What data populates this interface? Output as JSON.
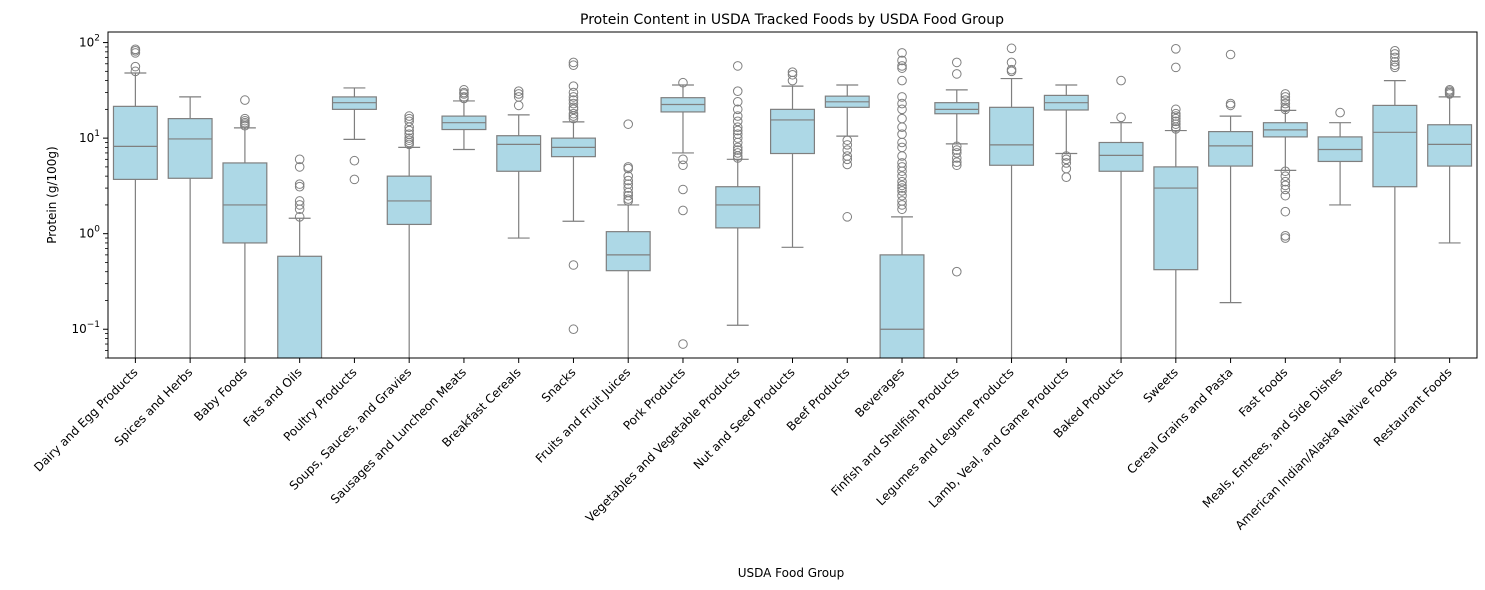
{
  "chart_data": {
    "type": "box",
    "title": "Protein Content in USDA Tracked Foods by USDA Food Group",
    "xlabel": "USDA Food Group",
    "ylabel": "Protein (g/100g)",
    "yscale": "log",
    "ylim": [
      0.05,
      129
    ],
    "yticks": [
      {
        "value": 0.1,
        "base": "10",
        "exp": "−1"
      },
      {
        "value": 1,
        "base": "10",
        "exp": "0"
      },
      {
        "value": 10,
        "base": "10",
        "exp": "1"
      },
      {
        "value": 100,
        "base": "10",
        "exp": "2"
      }
    ],
    "grid": false,
    "legend": "none",
    "colors": {
      "box_fill": "#add8e6",
      "box_edge": "#7f7f7f",
      "axis": "#000000"
    },
    "categories": [
      "Dairy and Egg Products",
      "Spices and Herbs",
      "Baby Foods",
      "Fats and Oils",
      "Poultry Products",
      "Soups, Sauces, and Gravies",
      "Sausages and Luncheon Meats",
      "Breakfast Cereals",
      "Snacks",
      "Fruits and Fruit Juices",
      "Pork Products",
      "Vegetables and Vegetable Products",
      "Nut and Seed Products",
      "Beef Products",
      "Beverages",
      "Finfish and Shellfish Products",
      "Legumes and Legume Products",
      "Lamb, Veal, and Game Products",
      "Baked Products",
      "Sweets",
      "Cereal Grains and Pasta",
      "Fast Foods",
      "Meals, Entrees, and Side Dishes",
      "American Indian/Alaska Native Foods",
      "Restaurant Foods"
    ],
    "boxes": [
      {
        "whislo": 0,
        "q1": 3.7,
        "med": 8.2,
        "q3": 21.5,
        "whishi": 48,
        "fliers": [
          85,
          82,
          78,
          56,
          50
        ]
      },
      {
        "whislo": 0,
        "q1": 3.8,
        "med": 9.8,
        "q3": 16,
        "whishi": 27,
        "fliers": []
      },
      {
        "whislo": 0,
        "q1": 0.8,
        "med": 2.0,
        "q3": 5.5,
        "whishi": 12.8,
        "fliers": [
          25,
          16,
          15.2,
          14.5,
          14,
          13.5
        ]
      },
      {
        "whislo": 0,
        "q1": 0,
        "med": 0.01,
        "q3": 0.58,
        "whishi": 1.45,
        "fliers": [
          6,
          5,
          3.3,
          3.1,
          2.2,
          2.0,
          1.8,
          1.5
        ]
      },
      {
        "whislo": 9.7,
        "q1": 20,
        "med": 23.5,
        "q3": 27,
        "whishi": 33.5,
        "fliers": [
          5.8,
          3.7
        ]
      },
      {
        "whislo": 0,
        "q1": 1.25,
        "med": 2.2,
        "q3": 4.0,
        "whishi": 8.0,
        "fliers": [
          17,
          16,
          15,
          13,
          12,
          11,
          10,
          9.5,
          9,
          8.6
        ]
      },
      {
        "whislo": 7.6,
        "q1": 12.3,
        "med": 14.5,
        "q3": 17,
        "whishi": 24.5,
        "fliers": [
          32,
          30,
          29,
          27,
          26
        ]
      },
      {
        "whislo": 0.9,
        "q1": 4.5,
        "med": 8.6,
        "q3": 10.6,
        "whishi": 17.5,
        "fliers": [
          31,
          29,
          27,
          22
        ]
      },
      {
        "whislo": 1.35,
        "q1": 6.4,
        "med": 8.0,
        "q3": 10,
        "whishi": 14.8,
        "fliers": [
          62,
          58,
          35,
          30,
          27,
          25,
          23,
          21,
          20,
          18,
          17,
          16,
          0.47,
          0.1
        ]
      },
      {
        "whislo": 0,
        "q1": 0.41,
        "med": 0.6,
        "q3": 1.05,
        "whishi": 2.0,
        "fliers": [
          14,
          5,
          4.8,
          4,
          3.6,
          3.3,
          3,
          2.7,
          2.5,
          2.3,
          2.2
        ]
      },
      {
        "whislo": 7,
        "q1": 18.8,
        "med": 22.5,
        "q3": 26.5,
        "whishi": 36,
        "fliers": [
          38,
          6,
          5.2,
          2.9,
          1.75,
          0.07
        ]
      },
      {
        "whislo": 0.11,
        "q1": 1.15,
        "med": 2.0,
        "q3": 3.1,
        "whishi": 6,
        "fliers": [
          57,
          31,
          24,
          20,
          17,
          15,
          13,
          12,
          11,
          10,
          9,
          8,
          7.5,
          7,
          6.5,
          6.2
        ]
      },
      {
        "whislo": 0.72,
        "q1": 6.9,
        "med": 15.5,
        "q3": 20,
        "whishi": 35,
        "fliers": [
          49,
          46,
          40
        ]
      },
      {
        "whislo": 10.5,
        "q1": 21,
        "med": 24,
        "q3": 27.5,
        "whishi": 36,
        "fliers": [
          9.5,
          8.5,
          7.5,
          6.5,
          6,
          5.3,
          1.5
        ]
      },
      {
        "whislo": 0,
        "q1": 0,
        "med": 0.1,
        "q3": 0.6,
        "whishi": 1.5,
        "fliers": [
          78,
          65,
          57,
          54,
          40,
          27,
          23,
          20,
          16,
          13,
          11,
          9,
          8,
          6.5,
          5.5,
          5,
          4.5,
          4,
          3.5,
          3.2,
          3,
          2.8,
          2.5,
          2.2,
          2,
          1.8
        ]
      },
      {
        "whislo": 8.7,
        "q1": 18,
        "med": 20,
        "q3": 23.5,
        "whishi": 32,
        "fliers": [
          62,
          47,
          8.2,
          7.5,
          7,
          6.2,
          5.6,
          5.2,
          0.4
        ]
      },
      {
        "whislo": 0,
        "q1": 5.2,
        "med": 8.5,
        "q3": 21,
        "whishi": 42,
        "fliers": [
          87,
          62,
          52,
          50
        ]
      },
      {
        "whislo": 6.9,
        "q1": 19.7,
        "med": 23.5,
        "q3": 28,
        "whishi": 36,
        "fliers": [
          6.5,
          6,
          5.5,
          4.8,
          3.9
        ]
      },
      {
        "whislo": 0,
        "q1": 4.5,
        "med": 6.6,
        "q3": 9,
        "whishi": 14.5,
        "fliers": [
          40,
          16.5
        ]
      },
      {
        "whislo": 0,
        "q1": 0.42,
        "med": 3.0,
        "q3": 5,
        "whishi": 12,
        "fliers": [
          86,
          55,
          20,
          18,
          17,
          16,
          15,
          14,
          13,
          12.5
        ]
      },
      {
        "whislo": 0.19,
        "q1": 5.1,
        "med": 8.3,
        "q3": 11.7,
        "whishi": 17,
        "fliers": [
          75,
          23,
          22
        ]
      },
      {
        "whislo": 4.6,
        "q1": 10.3,
        "med": 12.2,
        "q3": 14.5,
        "whishi": 19.5,
        "fliers": [
          29,
          27,
          25,
          23,
          21,
          20,
          4.5,
          4,
          3.5,
          3.2,
          2.9,
          2.5,
          1.7,
          0.95,
          0.9
        ]
      },
      {
        "whislo": 2.0,
        "q1": 5.7,
        "med": 7.6,
        "q3": 10.3,
        "whishi": 14.5,
        "fliers": [
          18.5
        ]
      },
      {
        "whislo": 0,
        "q1": 3.1,
        "med": 11.5,
        "q3": 22,
        "whishi": 40,
        "fliers": [
          82,
          76,
          70,
          63,
          58,
          55
        ]
      },
      {
        "whislo": 0.8,
        "q1": 5.1,
        "med": 8.6,
        "q3": 13.8,
        "whishi": 27,
        "fliers": [
          32,
          31,
          30,
          29
        ]
      }
    ]
  }
}
